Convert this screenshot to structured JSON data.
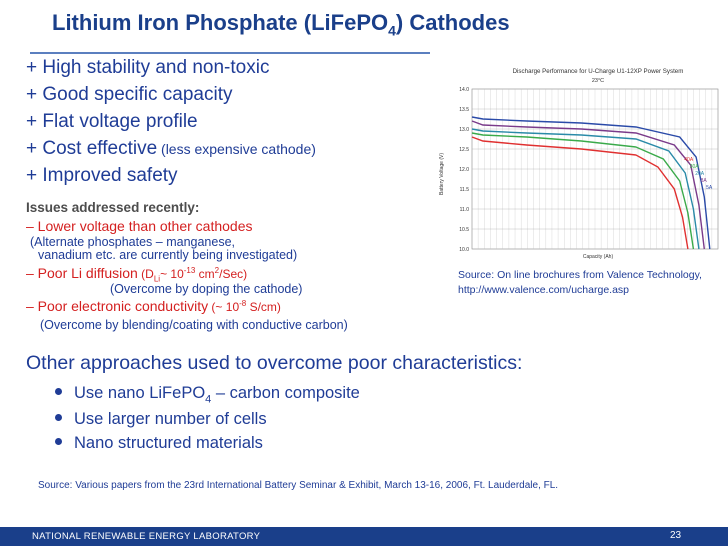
{
  "title": {
    "pre": "Lithium Iron Phosphate (LiFePO",
    "sub": "4",
    "post": ") Cathodes"
  },
  "pros": [
    {
      "text": "+ High stability and non-toxic"
    },
    {
      "text": "+ Good specific capacity"
    },
    {
      "text": "+ Flat voltage profile"
    },
    {
      "text": "+ Cost effective",
      "small": " (less expensive cathode)"
    },
    {
      "text": "+ Improved safety"
    }
  ],
  "issues": {
    "heading": "Issues addressed recently:",
    "lower_voltage": "– Lower voltage than other cathodes",
    "alt_line1": "(Alternate phosphates – manganese,",
    "alt_line2": "vanadium etc. are currently being investigated)",
    "diffusion_main": "– Poor Li diffusion",
    "diffusion_note_a": " (D",
    "diffusion_note_sub": "Li",
    "diffusion_note_b": "~ 10",
    "diffusion_note_sup": "-13",
    "diffusion_note_c": " cm",
    "diffusion_note_sup2": "2",
    "diffusion_note_d": "/Sec)",
    "doping": "(Overcome by doping the cathode)",
    "conductivity_main": "– Poor electronic conductivity",
    "cond_note_a": " (~ 10",
    "cond_note_sup": "-8",
    "cond_note_b": " S/cm)",
    "blending": "(Overcome by blending/coating with conductive carbon)"
  },
  "other": {
    "heading": "Other approaches used to overcome poor characteristics:",
    "b1_a": "Use nano LiFePO",
    "b1_sub": "4",
    "b1_b": " – carbon composite",
    "b2": "Use larger number of cells",
    "b3": "Nano structured materials"
  },
  "source_right_1": "Source: On line brochures from Valence Technology,",
  "source_right_2": "http://www.valence.com/ucharge.asp",
  "source_bottom": "Source: Various papers from the 23rd International Battery Seminar & Exhibit, March 13-16, 2006, Ft. Lauderdale, FL.",
  "footer": {
    "lab": "NATIONAL RENEWABLE ENERGY LABORATORY",
    "page": "23"
  },
  "colors": {
    "accent": "#1a3f8a",
    "text_blue": "#1f3c96",
    "red": "#d42020"
  },
  "chart_data": {
    "type": "line",
    "title": "Discharge Performance for U-Charge U1-12XP Power System",
    "subtitle": "23°C",
    "xlabel": "Capacity (Ah)",
    "ylabel": "Battery Voltage (V)",
    "xlim": [
      0,
      45
    ],
    "ylim": [
      10.0,
      14.0
    ],
    "yticks": [
      "10.0",
      "10.5",
      "11.0",
      "11.5",
      "12.0",
      "12.5",
      "13.0",
      "13.5",
      "14.0"
    ],
    "grid": true,
    "legend": "inline-right",
    "series": [
      {
        "name": "5A",
        "color": "#2a4aa8",
        "x": [
          0,
          2,
          10,
          20,
          30,
          38,
          41,
          42.5,
          43.5
        ],
        "y": [
          13.3,
          13.25,
          13.2,
          13.15,
          13.05,
          12.8,
          12.3,
          11.3,
          10.0
        ]
      },
      {
        "name": "8A",
        "color": "#7a3a8a",
        "x": [
          0,
          2,
          10,
          20,
          30,
          37,
          40,
          41.5,
          42.5
        ],
        "y": [
          13.2,
          13.1,
          13.05,
          13.0,
          12.9,
          12.6,
          12.1,
          11.1,
          10.0
        ]
      },
      {
        "name": "20A",
        "color": "#2a8aa8",
        "x": [
          0,
          2,
          10,
          20,
          30,
          36,
          39,
          40.5,
          41.5
        ],
        "y": [
          13.0,
          12.95,
          12.9,
          12.85,
          12.75,
          12.45,
          11.9,
          11.0,
          10.0
        ]
      },
      {
        "name": "30A",
        "color": "#3aaa4a",
        "x": [
          0,
          2,
          10,
          20,
          30,
          35,
          38,
          39.5,
          40.5
        ],
        "y": [
          12.9,
          12.85,
          12.8,
          12.7,
          12.55,
          12.25,
          11.7,
          10.9,
          10.0
        ]
      },
      {
        "name": "40A",
        "color": "#e03030",
        "x": [
          0,
          2,
          10,
          20,
          30,
          34,
          37,
          38.5,
          39.5
        ],
        "y": [
          12.8,
          12.7,
          12.6,
          12.5,
          12.35,
          12.05,
          11.5,
          10.8,
          10.0
        ]
      }
    ]
  }
}
